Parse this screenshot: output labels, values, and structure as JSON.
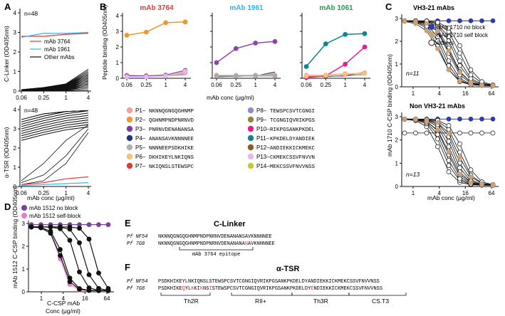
{
  "chart_data": [
    {
      "id": "A-top",
      "type": "line",
      "panel": "A",
      "n_label": "n=48",
      "ylabel": "C-Linker (OD405nm)",
      "x_ticks": [
        "0.06",
        "0.25",
        "1",
        "4"
      ],
      "y_ticks": [
        "0",
        "1",
        "2",
        "3",
        "4"
      ],
      "ylim": [
        0,
        4
      ],
      "legend": [
        "mAb 3764",
        "mAb 1961",
        "Other mAbs"
      ],
      "series": [
        {
          "name": "mAb 3764",
          "color": "#e53935",
          "values": [
            2.8,
            2.8,
            2.9,
            2.95
          ]
        },
        {
          "name": "mAb 1961",
          "color": "#29b6f6",
          "values": [
            2.75,
            2.95,
            2.95,
            3.0
          ]
        }
      ]
    },
    {
      "id": "A-bottom",
      "type": "line",
      "n_label": "n=48",
      "ylabel": "α-TSR (OD405nm)",
      "xlabel": "mAb conc (μg/ml)",
      "x_ticks": [
        "0.06",
        "0.25",
        "1",
        "4"
      ],
      "y_ticks": [
        "0",
        "1",
        "2",
        "3",
        "4"
      ],
      "ylim": [
        0,
        4
      ],
      "series": [
        {
          "name": "mAb 3764",
          "color": "#e53935",
          "values": [
            0.1,
            0.2,
            0.4,
            0.5
          ]
        },
        {
          "name": "mAb 1961",
          "color": "#29b6f6",
          "values": [
            0.05,
            0.1,
            0.15,
            0.2
          ]
        }
      ]
    },
    {
      "id": "B",
      "type": "line",
      "panel": "B",
      "ylabel": "Peptide binding (OD405nm)",
      "xlabel": "mAb conc (μg/ml)",
      "x_ticks": [
        "0.06",
        "0.25",
        "1",
        "4"
      ],
      "y_ticks": [
        "0",
        "1",
        "2",
        "3",
        "4"
      ],
      "ylim": [
        0,
        4
      ],
      "subplots": [
        {
          "title": "mAb 3764",
          "title_color": "#e53935",
          "series": [
            {
              "name": "P2",
              "color": "#f0962e",
              "values": [
                2.75,
                2.95,
                3.55,
                3.6
              ]
            },
            {
              "name": "P1",
              "color": "#f4a0a0",
              "values": [
                0.2,
                0.15,
                0.2,
                0.35
              ]
            },
            {
              "name": "P3",
              "color": "#7b3fa0",
              "values": [
                0.15,
                0.15,
                0.2,
                0.5
              ]
            },
            {
              "name": "P13",
              "color": "#e8b8e8",
              "values": [
                0.1,
                0.1,
                0.15,
                0.45
              ]
            }
          ]
        },
        {
          "title": "mAb 1961",
          "title_color": "#29b6f6",
          "series": [
            {
              "name": "P3",
              "color": "#8e44ad",
              "values": [
                1.0,
                1.9,
                2.25,
                2.35
              ]
            },
            {
              "name": "P1",
              "color": "#f4a0a0",
              "values": [
                0.2,
                0.18,
                0.2,
                0.2
              ]
            },
            {
              "name": "P5",
              "color": "#aaaaaa",
              "values": [
                0.15,
                0.15,
                0.15,
                0.15
              ]
            }
          ]
        },
        {
          "title": "mAb 1061",
          "title_color": "#1e9e4a",
          "series": [
            {
              "name": "P11",
              "color": "#12848f",
              "values": [
                0.75,
                2.2,
                2.8,
                2.85
              ]
            },
            {
              "name": "P10",
              "color": "#e91e8c",
              "values": [
                0.05,
                0.15,
                0.9,
                2.0
              ]
            },
            {
              "name": "P1",
              "color": "#f4a0a0",
              "values": [
                0.2,
                0.2,
                0.25,
                0.35
              ]
            },
            {
              "name": "P6",
              "color": "#f5c27a",
              "values": [
                0.15,
                0.2,
                0.3,
                0.3
              ]
            }
          ]
        }
      ],
      "peptides_left": [
        {
          "id": "P1",
          "seq": "NKNNQGNGQGHNMP",
          "color": "#f4a0a0"
        },
        {
          "id": "P2",
          "seq": "QGHNMPNDPNRNVD",
          "color": "#f0962e"
        },
        {
          "id": "P3",
          "seq": "PNRNVDENANANSA",
          "color": "#7b3fa0"
        },
        {
          "id": "P4",
          "seq": "ANANSAVKNNNNEE",
          "color": "#1a3a7a"
        },
        {
          "id": "P5",
          "seq": "NNNNEEPSDKHIKE",
          "color": "#b0b0b0"
        },
        {
          "id": "P6",
          "seq": "DKHIKEYLNKIQNS",
          "color": "#f5c27a"
        },
        {
          "id": "P7",
          "seq": "NKIQNSLSTEWSPC",
          "color": "#e53935"
        }
      ],
      "peptides_right": [
        {
          "id": "P8",
          "seq": "TEWSPCSVTCGNGI",
          "color": "#8e8ec8"
        },
        {
          "id": "P9",
          "seq": "TCGNGIQVRIKPGS",
          "color": "#8a8a3a"
        },
        {
          "id": "P10",
          "seq": "RIKPGSANKPKDEL",
          "color": "#e91e8c"
        },
        {
          "id": "P11",
          "seq": "KPKDELDYANDIEK",
          "color": "#12848f"
        },
        {
          "id": "P12",
          "seq": "ANDIEKKICKMEKC",
          "color": "#8b5a2b"
        },
        {
          "id": "P13",
          "seq": "CKMEKCSSVFNVVN",
          "color": "#e8b8e8"
        },
        {
          "id": "P14",
          "seq": "MEKCSSVFNVVNSS",
          "color": "#c8c830"
        }
      ]
    },
    {
      "id": "C",
      "type": "line",
      "panel": "C",
      "ylabel": "mAb 1710 C-CSP binding (OD405nm)",
      "xlabel": "mAb conc (μg/ml)",
      "x_ticks": [
        "1",
        "4",
        "16",
        "64"
      ],
      "y_ticks": [
        "0",
        "1",
        "2",
        "3"
      ],
      "ylim": [
        0,
        3
      ],
      "legend": [
        {
          "label": "mAb 1710 no block",
          "color": "#2e3ab0"
        },
        {
          "label": "mAb 1710 self block",
          "color": "#c9a27a"
        },
        {
          "label": "Others",
          "color": "#ffffff"
        }
      ],
      "subplots": [
        {
          "title": "VH3-21 mAbs",
          "n_label": "n=11"
        },
        {
          "title": "Non VH3-21 mAbs",
          "n_label": "n=13"
        }
      ]
    },
    {
      "id": "D",
      "type": "line",
      "panel": "D",
      "ylabel": "mAb 1512 C-CSP binding (OD405nm)",
      "xlabel": "C-CSP mAb Conc (μg/ml)",
      "x_ticks": [
        "1",
        "4",
        "16",
        "64"
      ],
      "y_ticks": [
        "0",
        "1",
        "2",
        "3"
      ],
      "ylim": [
        0,
        3
      ],
      "legend": [
        {
          "label": "mAb 1512 no block",
          "color": "#7b3fa0"
        },
        {
          "label": "mAb 1512 self-block",
          "color": "#e87ad0"
        }
      ]
    }
  ],
  "panel_e": {
    "title": "C-Linker",
    "strains": [
      "Pf NF54",
      "Pf 7G8"
    ],
    "seq_nf54": "NKNNQGNGQGHNMPNDPNRNVDENANANSAVKNNNNEE",
    "seq_7g8_a": "NKNNQGNGQGHNMPNDPNRNVDENANANA",
    "seq_7g8_mut": "N",
    "seq_7g8_b": "AVKNNNNEE",
    "epitope_label": "mAb 3764 epitope"
  },
  "panel_f": {
    "title": "α-TSR",
    "strains": [
      "Pf NF54",
      "Pf 7G8"
    ],
    "seq_nf54": "PSDKHIKEYLNKIQNSLSTEWSPCSVTCGNGIQVRIKPGSANKPKDELDYANDIEKKICKMEKCSSVFNVVNSS",
    "seq_7g8": "PSDKHIKEQYLKKIKNSISTEWSPCSVTCGNGIQVRIKPGSANKPKDELDYENDIEKKICKMEKCSSVFNVVNSS",
    "regions": [
      "Th2R",
      "RII+",
      "Th3R",
      "CS.T3"
    ]
  },
  "panel_letters": [
    "A",
    "B",
    "C",
    "D",
    "E",
    "F"
  ]
}
